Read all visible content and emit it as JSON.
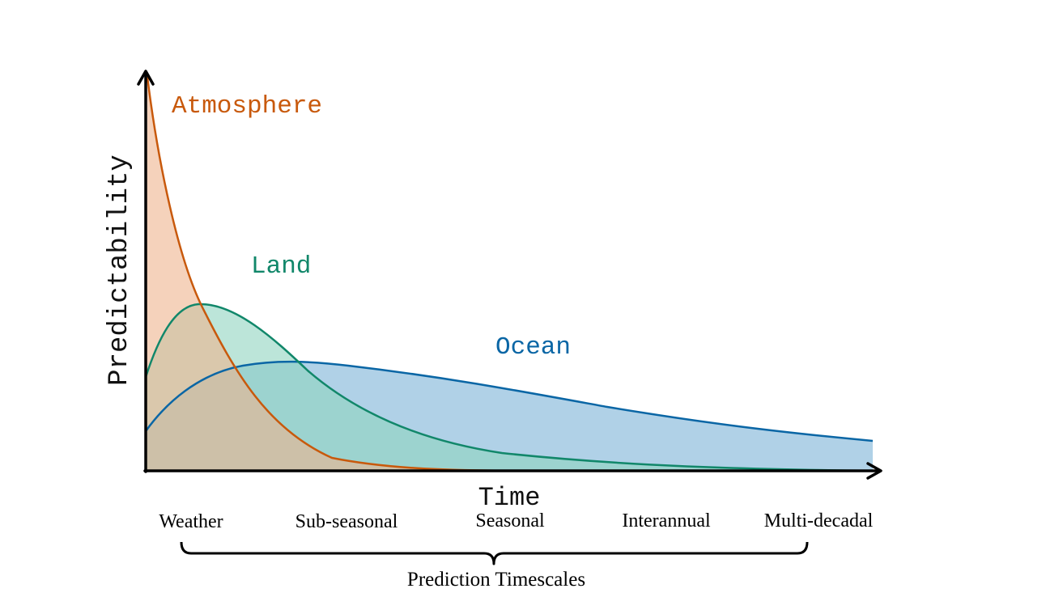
{
  "axes": {
    "y_label": "Predictability",
    "x_label": "Time"
  },
  "curves": {
    "atmosphere": {
      "label": "Atmosphere",
      "stroke": "#c8590c",
      "fill": "#eeb48e"
    },
    "land": {
      "label": "Land",
      "stroke": "#11876a",
      "fill": "#8fd3c0"
    },
    "ocean": {
      "label": "Ocean",
      "stroke": "#0a66a5",
      "fill": "#8fbedd"
    }
  },
  "timescales": {
    "items": [
      "Weather",
      "Sub-seasonal",
      "Seasonal",
      "Interannual",
      "Multi-decadal"
    ],
    "bracket_label": "Prediction Timescales"
  }
}
